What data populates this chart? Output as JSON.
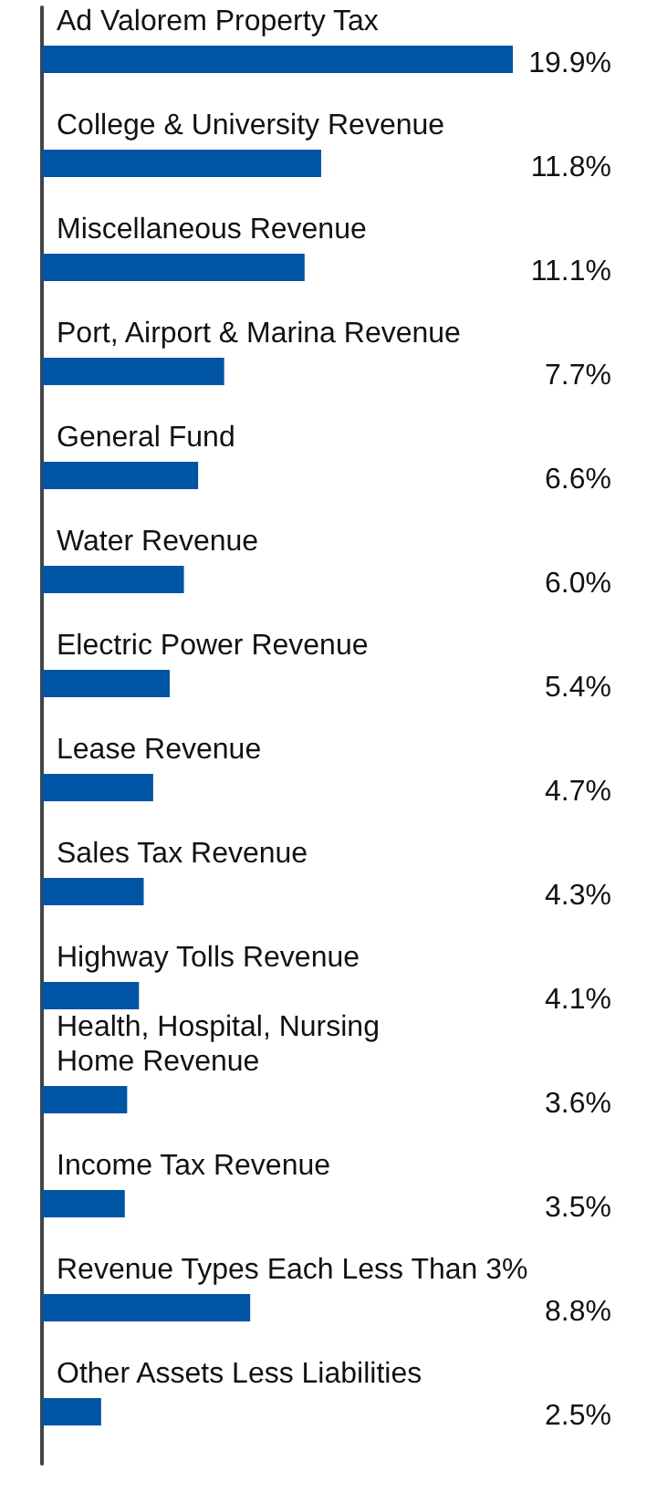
{
  "chart_data": {
    "type": "bar",
    "orientation": "horizontal",
    "categories": [
      "Ad Valorem Property Tax",
      "College & University Revenue",
      "Miscellaneous Revenue",
      "Port, Airport & Marina Revenue",
      "General Fund",
      "Water Revenue",
      "Electric Power Revenue",
      "Lease Revenue",
      "Sales Tax Revenue",
      "Highway Tolls Revenue",
      "Health, Hospital, Nursing\nHome Revenue",
      "Income Tax Revenue",
      "Revenue Types Each Less Than 3%",
      "Other Assets Less Liabilities"
    ],
    "values": [
      19.9,
      11.8,
      11.1,
      7.7,
      6.6,
      6.0,
      5.4,
      4.7,
      4.3,
      4.1,
      3.6,
      3.5,
      8.8,
      2.5
    ],
    "value_labels": [
      "19.9%",
      "11.8%",
      "11.1%",
      "7.7%",
      "6.6%",
      "6.0%",
      "5.4%",
      "4.7%",
      "4.3%",
      "4.1%",
      "3.6%",
      "3.5%",
      "8.8%",
      "2.5%"
    ],
    "color": "#0054a4",
    "tick_labels": "y"
  }
}
